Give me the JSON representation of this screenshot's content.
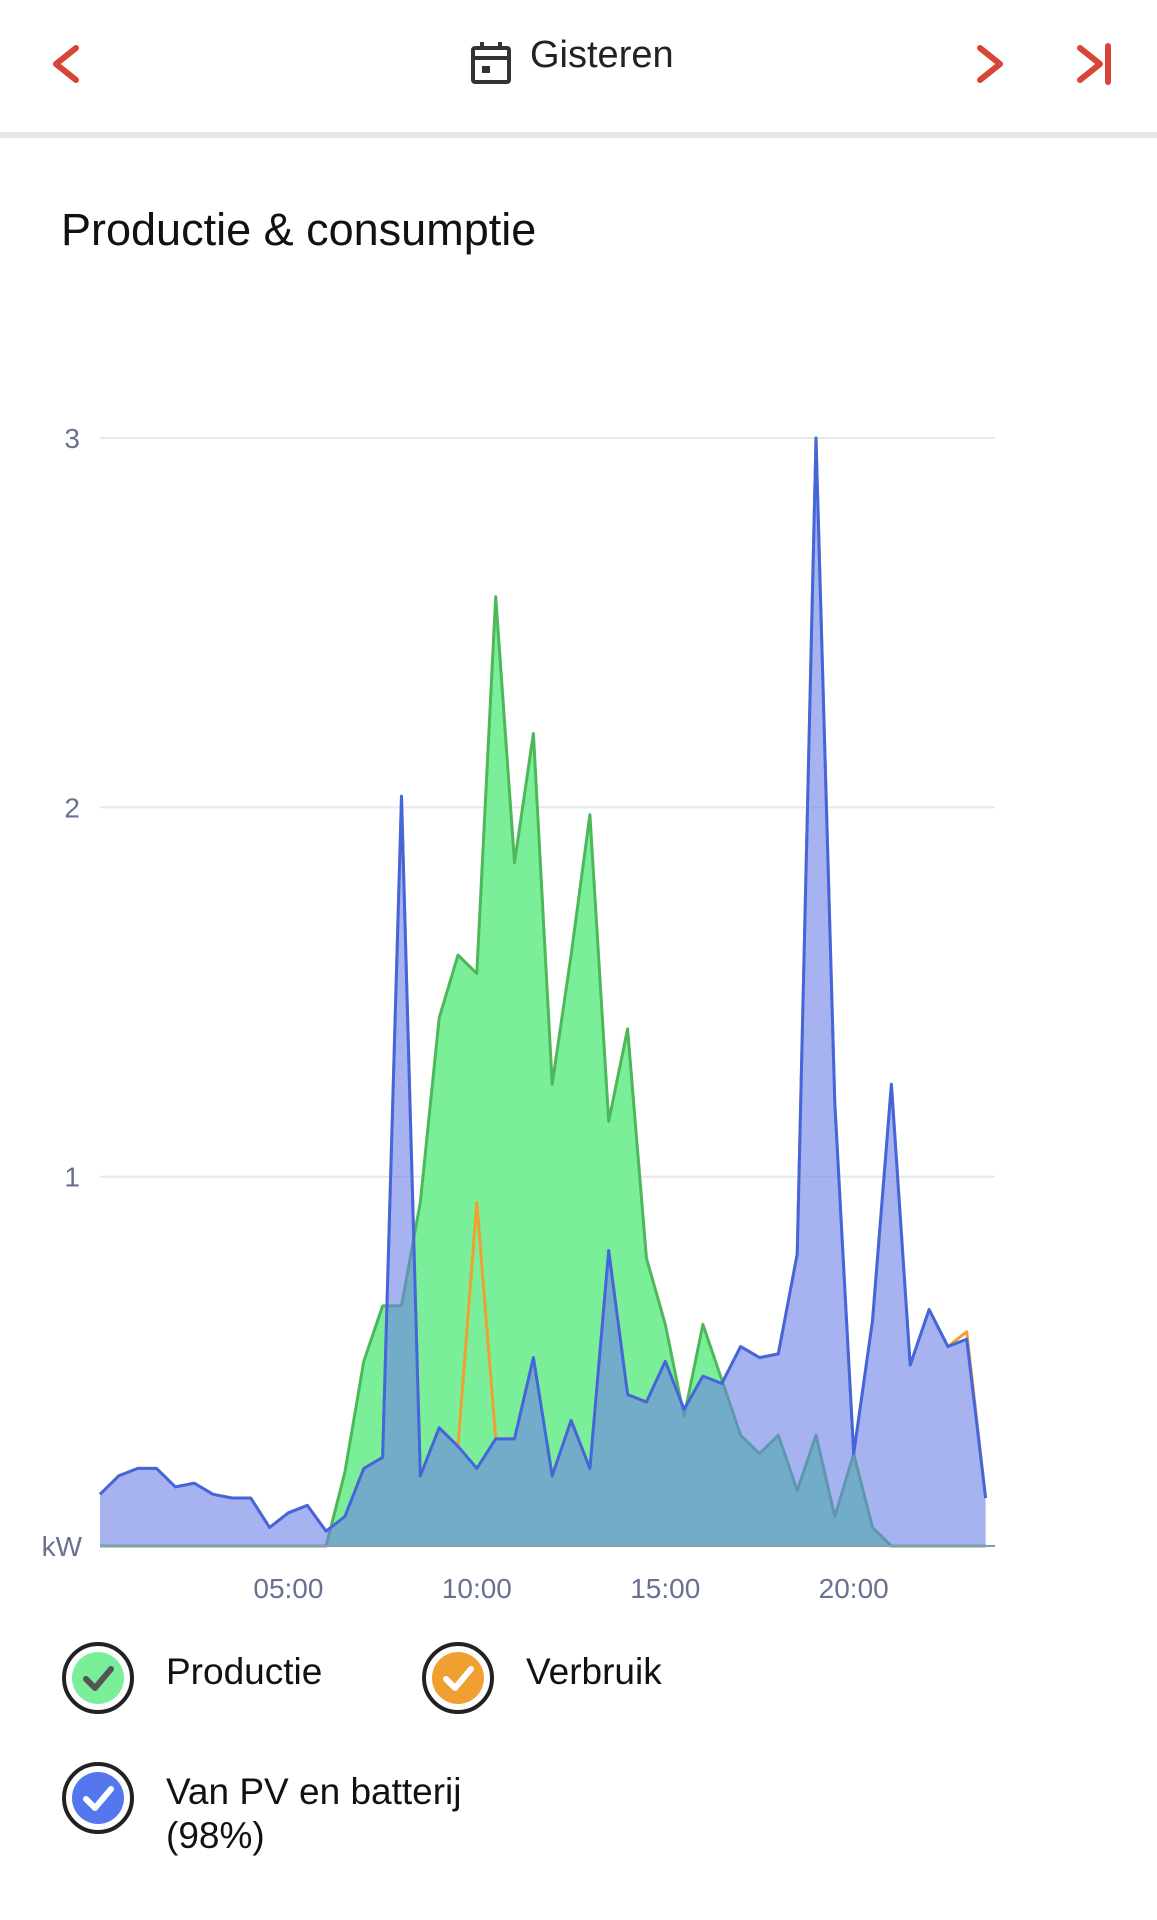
{
  "header": {
    "title": "Gisteren"
  },
  "chart_data": {
    "type": "area",
    "title": "Productie & consumptie",
    "y_label": "kW",
    "x": [
      0,
      0.5,
      1,
      1.5,
      2,
      2.5,
      3,
      3.5,
      4,
      4.5,
      5,
      5.5,
      6,
      6.5,
      7,
      7.5,
      8,
      8.5,
      9,
      9.5,
      10,
      10.5,
      11,
      11.5,
      12,
      12.5,
      13,
      13.5,
      14,
      14.5,
      15,
      15.5,
      16,
      16.5,
      17,
      17.5,
      18,
      18.5,
      19,
      19.5,
      20,
      20.5,
      21,
      21.5,
      22,
      22.5,
      23,
      23.5
    ],
    "xlim": [
      0,
      23.75
    ],
    "xticks": [
      {
        "value": 5,
        "label": "05:00"
      },
      {
        "value": 10,
        "label": "10:00"
      },
      {
        "value": 15,
        "label": "15:00"
      },
      {
        "value": 20,
        "label": "20:00"
      }
    ],
    "ylim": [
      0,
      3
    ],
    "yticks": [
      1,
      2,
      3
    ],
    "grid": true,
    "series": [
      {
        "name": "Productie",
        "color": "#4cb85a",
        "fill": "#7aee98",
        "values": [
          0,
          0,
          0,
          0,
          0,
          0,
          0,
          0,
          0,
          0,
          0,
          0,
          0,
          0.2,
          0.5,
          0.65,
          0.65,
          0.93,
          1.43,
          1.6,
          1.55,
          2.57,
          1.85,
          2.2,
          1.25,
          1.6,
          1.98,
          1.15,
          1.4,
          0.78,
          0.6,
          0.35,
          0.6,
          0.45,
          0.3,
          0.25,
          0.3,
          0.15,
          0.3,
          0.08,
          0.25,
          0.05,
          0,
          0,
          0,
          0,
          0,
          0
        ]
      },
      {
        "name": "Verbruik",
        "color": "#f0a030",
        "fill": "none",
        "values": [
          0.14,
          0.19,
          0.21,
          0.21,
          0.16,
          0.17,
          0.14,
          0.13,
          0.13,
          0.05,
          0.09,
          0.11,
          0.04,
          0.08,
          0.21,
          0.24,
          2.03,
          0.19,
          0.32,
          0.27,
          0.93,
          0.29,
          0.29,
          0.51,
          0.19,
          0.34,
          0.21,
          0.8,
          0.41,
          0.39,
          0.5,
          0.37,
          0.46,
          0.44,
          0.54,
          0.51,
          0.52,
          0.79,
          3.0,
          1.2,
          0.25,
          0.61,
          1.25,
          0.49,
          0.64,
          0.54,
          0.58,
          0.13
        ]
      },
      {
        "name": "Van PV en batterij (98%)",
        "color": "#4466dd",
        "fill": "rgba(108,128,232,0.6)",
        "values": [
          0.14,
          0.19,
          0.21,
          0.21,
          0.16,
          0.17,
          0.14,
          0.13,
          0.13,
          0.05,
          0.09,
          0.11,
          0.04,
          0.08,
          0.21,
          0.24,
          2.03,
          0.19,
          0.32,
          0.27,
          0.21,
          0.29,
          0.29,
          0.51,
          0.19,
          0.34,
          0.21,
          0.8,
          0.41,
          0.39,
          0.5,
          0.37,
          0.46,
          0.44,
          0.54,
          0.51,
          0.52,
          0.79,
          3.0,
          1.2,
          0.25,
          0.61,
          1.25,
          0.49,
          0.64,
          0.54,
          0.56,
          0.13
        ]
      }
    ]
  }
}
